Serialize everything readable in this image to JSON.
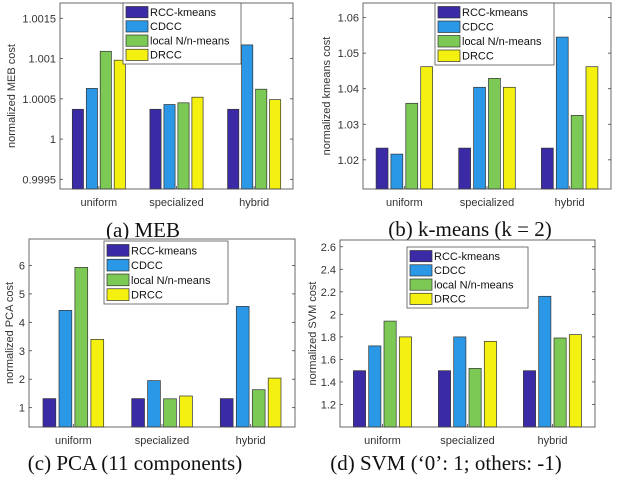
{
  "colors": {
    "RCC-kmeans": "#3a2aa6",
    "CDCC": "#2a98e6",
    "local N/n-means": "#7cc955",
    "DRCC": "#f4f010"
  },
  "chart_data": [
    {
      "type": "bar",
      "caption": "(a) MEB",
      "ylabel": "normalized MEB cost",
      "categories": [
        "uniform",
        "specialized",
        "hybrid"
      ],
      "ylim": [
        0.99938,
        1.00169
      ],
      "yticks": [
        0.9995,
        1,
        1.0005,
        1.001,
        1.0015
      ],
      "ytick_labels": [
        "0.9995",
        "1",
        "1.0005",
        "1.001",
        "1.0015"
      ],
      "legend": "top-center",
      "series": [
        {
          "name": "RCC-kmeans",
          "values": [
            1.00037,
            1.00037,
            1.00037
          ]
        },
        {
          "name": "CDCC",
          "values": [
            1.00063,
            1.00043,
            1.00117
          ]
        },
        {
          "name": "local N/n-means",
          "values": [
            1.00109,
            1.00045,
            1.00062
          ]
        },
        {
          "name": "DRCC",
          "values": [
            1.00098,
            1.00052,
            1.00049
          ]
        }
      ]
    },
    {
      "type": "bar",
      "caption": "(b) k-means (k = 2)",
      "ylabel": "normalized kmeans cost",
      "categories": [
        "uniform",
        "specialized",
        "hybrid"
      ],
      "ylim": [
        1.0118,
        1.0641
      ],
      "yticks": [
        1.02,
        1.03,
        1.04,
        1.05,
        1.06
      ],
      "ytick_labels": [
        "1.02",
        "1.03",
        "1.04",
        "1.05",
        "1.06"
      ],
      "legend": "top-right",
      "series": [
        {
          "name": "RCC-kmeans",
          "values": [
            1.0233,
            1.0233,
            1.0233
          ]
        },
        {
          "name": "CDCC",
          "values": [
            1.0216,
            1.0404,
            1.0545
          ]
        },
        {
          "name": "local N/n-means",
          "values": [
            1.0359,
            1.0429,
            1.0325
          ]
        },
        {
          "name": "DRCC",
          "values": [
            1.0462,
            1.0404,
            1.0462
          ]
        }
      ]
    },
    {
      "type": "bar",
      "caption": "(c) PCA (11 components)",
      "ylabel": "normalized PCA cost",
      "categories": [
        "uniform",
        "specialized",
        "hybrid"
      ],
      "ylim": [
        0.32,
        6.93
      ],
      "yticks": [
        1,
        2,
        3,
        4,
        5,
        6
      ],
      "ytick_labels": [
        "1",
        "2",
        "3",
        "4",
        "5",
        "6"
      ],
      "legend": "top-center",
      "series": [
        {
          "name": "RCC-kmeans",
          "values": [
            1.32,
            1.32,
            1.32
          ]
        },
        {
          "name": "CDCC",
          "values": [
            4.42,
            1.95,
            4.56
          ]
        },
        {
          "name": "local N/n-means",
          "values": [
            5.93,
            1.31,
            1.63
          ]
        },
        {
          "name": "DRCC",
          "values": [
            3.4,
            1.41,
            2.04
          ]
        }
      ]
    },
    {
      "type": "bar",
      "caption": "(d) SVM (‘0’: 1; others: -1)",
      "ylabel": "normalized SVM cost",
      "categories": [
        "uniform",
        "specialized",
        "hybrid"
      ],
      "ylim": [
        1.0,
        2.66
      ],
      "yticks": [
        1.2,
        1.4,
        1.6,
        1.8,
        2,
        2.2,
        2.4,
        2.6
      ],
      "ytick_labels": [
        "1.2",
        "1.4",
        "1.6",
        "1.8",
        "2",
        "2.2",
        "2.4",
        "2.6"
      ],
      "legend": "top-center",
      "series": [
        {
          "name": "RCC-kmeans",
          "values": [
            1.5,
            1.5,
            1.5
          ]
        },
        {
          "name": "CDCC",
          "values": [
            1.72,
            1.8,
            2.16
          ]
        },
        {
          "name": "local N/n-means",
          "values": [
            1.94,
            1.52,
            1.79
          ]
        },
        {
          "name": "DRCC",
          "values": [
            1.8,
            1.76,
            1.82
          ]
        }
      ]
    }
  ]
}
